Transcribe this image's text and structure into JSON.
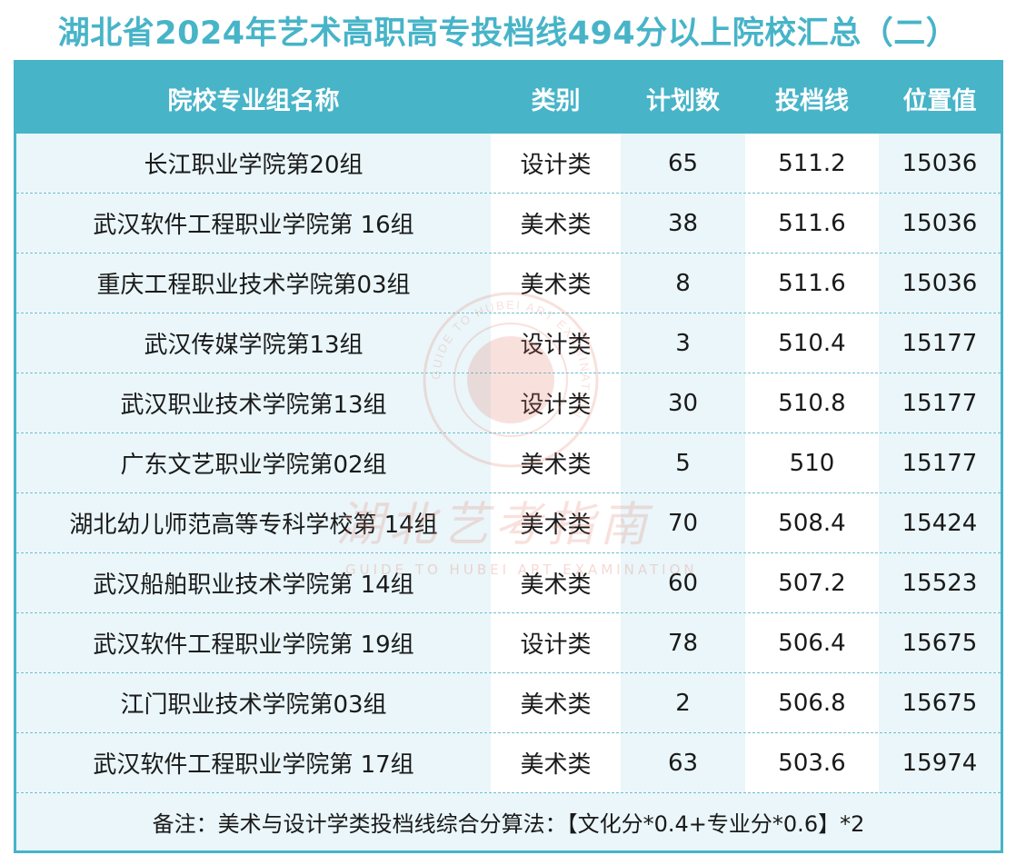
{
  "title": "湖北省2024年艺术高职高专投档线494分以上院校汇总（二）",
  "columns": [
    "院校专业组名称",
    "类别",
    "计划数",
    "投档线",
    "位置值"
  ],
  "rows": [
    [
      "长江职业学院第20组",
      "设计类",
      "65",
      "511.2",
      "15036"
    ],
    [
      "武汉软件工程职业学院第 16组",
      "美术类",
      "38",
      "511.6",
      "15036"
    ],
    [
      "重庆工程职业技术学院第03组",
      "美术类",
      "8",
      "511.6",
      "15036"
    ],
    [
      "武汉传媒学院第13组",
      "设计类",
      "3",
      "510.4",
      "15177"
    ],
    [
      "武汉职业技术学院第13组",
      "设计类",
      "30",
      "510.8",
      "15177"
    ],
    [
      "广东文艺职业学院第02组",
      "美术类",
      "5",
      "510",
      "15177"
    ],
    [
      "湖北幼儿师范高等专科学校第 14组",
      "美术类",
      "70",
      "508.4",
      "15424"
    ],
    [
      "武汉船舶职业技术学院第 14组",
      "美术类",
      "60",
      "507.2",
      "15523"
    ],
    [
      "武汉软件工程职业学院第 19组",
      "设计类",
      "78",
      "506.4",
      "15675"
    ],
    [
      "江门职业技术学院第03组",
      "美术类",
      "2",
      "506.8",
      "15675"
    ],
    [
      "武汉软件工程职业学院第 17组",
      "美术类",
      "63",
      "503.6",
      "15974"
    ]
  ],
  "note": "备注：美术与设计学类投档线综合分算法：【文化分*0.4+专业分*0.6】*2",
  "watermark": {
    "name": "湖北艺考指南",
    "name_en": "GUIDE TO HUBEI ART EXAMINATION",
    "circle_text": "GUIDE TO HUBEI ART EXAMINATION",
    "color": "#e07a6a"
  },
  "colors": {
    "accent": "#47b4c8",
    "row_tint": "#eaf6f9"
  }
}
